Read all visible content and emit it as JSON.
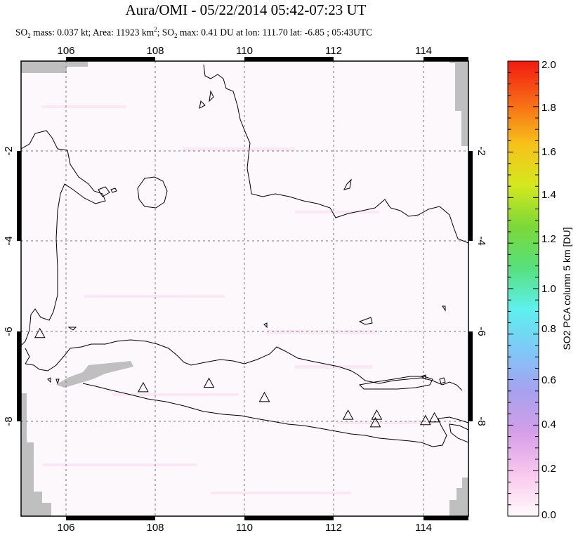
{
  "title": "Aura/OMI - 05/22/2014 05:42-07:23 UT",
  "subtitle": {
    "so2_mass_label": "SO",
    "so2_mass_sub": "2",
    "so2_mass_text": " mass: 0.037 kt; Area: 11923 km",
    "area_sup": "2",
    "so2_max_label": "; SO",
    "so2_max_sub": "2",
    "so2_max_text": " max: 0.41 DU at lon: 111.70 lat: -6.85 ; 05:43UTC"
  },
  "map": {
    "lon_ticks": [
      "106",
      "108",
      "110",
      "112",
      "114"
    ],
    "lat_ticks_left": [
      "-2",
      "-4",
      "-6",
      "-8"
    ],
    "lat_ticks_right": [
      "-2",
      "-4",
      "-6",
      "-8"
    ],
    "lon_range": [
      105,
      115
    ],
    "lat_range": [
      -10.2,
      0.05
    ],
    "background_color": "#fdf8fb",
    "missing_data_color": "#bfbfbf",
    "coast_color": "#000000",
    "grid": true,
    "volcanoes": [
      {
        "lon": 105.42,
        "lat": -6.1
      },
      {
        "lon": 107.73,
        "lat": -7.32
      },
      {
        "lon": 109.2,
        "lat": -7.22
      },
      {
        "lon": 110.44,
        "lat": -7.54
      },
      {
        "lon": 112.31,
        "lat": -7.94
      },
      {
        "lon": 112.95,
        "lat": -7.94
      },
      {
        "lon": 112.92,
        "lat": -8.11
      },
      {
        "lon": 114.04,
        "lat": -8.06
      },
      {
        "lon": 114.24,
        "lat": -8.0
      }
    ]
  },
  "colorbar": {
    "title": "SO2 PCA column 5 km [DU]",
    "labels": [
      "2.0",
      "1.8",
      "1.6",
      "1.4",
      "1.2",
      "1.0",
      "0.8",
      "0.6",
      "0.4",
      "0.2",
      "0.0"
    ],
    "min": 0.0,
    "max": 2.0,
    "colors": [
      "#fffafb",
      "#f9c9ee",
      "#d69fe8",
      "#a7a0ee",
      "#7fc8f8",
      "#5ef0ee",
      "#57e07c",
      "#7bd838",
      "#d4e81e",
      "#f7c11a",
      "#f76a16",
      "#f21a10"
    ]
  }
}
